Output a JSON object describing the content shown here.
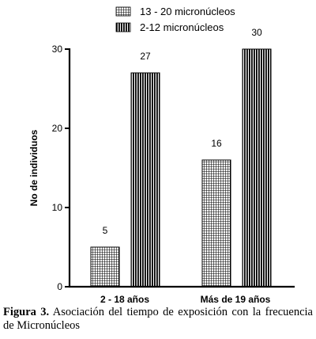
{
  "chart_data": {
    "type": "bar",
    "categories": [
      "2  - 18 años",
      "Más de 19 años"
    ],
    "series": [
      {
        "name": "13 - 20 micronúcleos",
        "values": [
          5,
          16
        ],
        "pattern": "grid"
      },
      {
        "name": "2-12 micronúcleos",
        "values": [
          27,
          30
        ],
        "pattern": "vertical-stripes"
      }
    ],
    "ylabel": "No de individuos",
    "xlabel": "",
    "ylim": [
      0,
      30
    ],
    "yticks": [
      "0",
      "10",
      "20",
      "30"
    ],
    "grid": false,
    "legend_position": "top-center",
    "data_labels": [
      [
        "5",
        "27"
      ],
      [
        "16",
        "30"
      ]
    ]
  },
  "caption": {
    "label": "Figura 3.",
    "text": "Asociación del tiempo de exposición con la frecuencia de Micronúcleos"
  }
}
